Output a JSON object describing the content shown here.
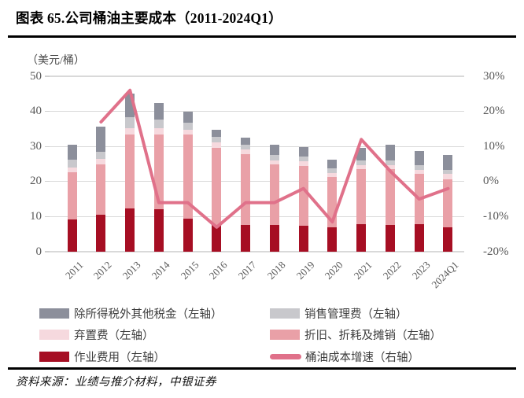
{
  "header": {
    "title": "图表 65.公司桶油主要成本（2011-2024Q1）"
  },
  "source": {
    "text": "资料来源：业绩与推介材料，中银证券"
  },
  "chart_data": {
    "type": "bar+line",
    "title": "公司桶油主要成本（2011-2024Q1）",
    "unit_label": "（美元/桶）",
    "categories": [
      "2011",
      "2012",
      "2013",
      "2014",
      "2015",
      "2016",
      "2017",
      "2018",
      "2019",
      "2020",
      "2021",
      "2022",
      "2023",
      "2024Q1"
    ],
    "series": [
      {
        "name": "作业费用（左轴）",
        "type": "bar",
        "axis": "left",
        "color": "#A60E23",
        "values": [
          9.1,
          10.5,
          12.3,
          12.2,
          9.5,
          7.7,
          7.7,
          7.6,
          7.4,
          6.9,
          7.8,
          7.7,
          7.8,
          6.9
        ]
      },
      {
        "name": "折旧、折耗及摊销（左轴）",
        "type": "bar",
        "axis": "left",
        "color": "#E9A0A7",
        "values": [
          13.5,
          14.4,
          21.2,
          21.3,
          23.9,
          22.0,
          20.1,
          17.2,
          17.1,
          14.4,
          15.8,
          15.8,
          14.3,
          13.7
        ]
      },
      {
        "name": "弃置费（左轴）",
        "type": "bar",
        "axis": "left",
        "color": "#F6D9DE",
        "values": [
          1.3,
          1.6,
          1.6,
          1.6,
          1.4,
          1.5,
          1.4,
          1.1,
          1.2,
          1.1,
          1.0,
          1.2,
          1.3,
          1.6
        ]
      },
      {
        "name": "销售管理费（左轴）",
        "type": "bar",
        "axis": "left",
        "color": "#C8C8CC",
        "values": [
          2.3,
          2.0,
          3.2,
          2.6,
          2.0,
          1.5,
          1.3,
          1.7,
          1.5,
          1.4,
          1.3,
          1.3,
          1.2,
          1.2
        ]
      },
      {
        "name": "除所得税外其他税金（左轴）",
        "type": "bar",
        "axis": "left",
        "color": "#8C8F9B",
        "values": [
          4.4,
          7.2,
          6.7,
          4.6,
          3.0,
          2.0,
          2.0,
          2.8,
          2.6,
          2.5,
          3.6,
          4.4,
          4.2,
          4.2
        ]
      },
      {
        "name": "桶油成本增速（右轴）",
        "type": "line",
        "axis": "right",
        "color": "#E0718A",
        "values": [
          null,
          17,
          26,
          -6,
          -6,
          -13,
          -6,
          -6,
          -2,
          -11.5,
          12,
          3,
          -5,
          -2
        ]
      }
    ],
    "bar_totals": [
      30.6,
      35.7,
      45.0,
      42.3,
      39.8,
      34.7,
      32.5,
      30.4,
      29.8,
      26.3,
      29.5,
      30.4,
      28.8,
      27.6
    ],
    "left_axis": {
      "min": 0,
      "max": 50,
      "ticks": [
        0,
        10,
        20,
        30,
        40,
        50
      ]
    },
    "right_axis": {
      "min": -20,
      "max": 30,
      "ticks": [
        {
          "label": "30%",
          "value": 30
        },
        {
          "label": "20%",
          "value": 20
        },
        {
          "label": "10%",
          "value": 10
        },
        {
          "label": "0%",
          "value": 0
        },
        {
          "label": "-10%",
          "value": -10
        },
        {
          "label": "-20%",
          "value": -20
        }
      ]
    },
    "grid": "horizontal",
    "legend_position": "bottom"
  },
  "legend": {
    "left_column": [
      {
        "label": "除所得税外其他税金（左轴）",
        "swatch": "rect",
        "color": "#8C8F9B"
      },
      {
        "label": "弃置费（左轴）",
        "swatch": "rect",
        "color": "#F6D9DE"
      },
      {
        "label": "作业费用（左轴）",
        "swatch": "rect",
        "color": "#A60E23"
      }
    ],
    "right_column": [
      {
        "label": "销售管理费（左轴）",
        "swatch": "rect",
        "color": "#C8C8CC"
      },
      {
        "label": "折旧、折耗及摊销（左轴）",
        "swatch": "rect",
        "color": "#E9A0A7"
      },
      {
        "label": "桶油成本增速（右轴）",
        "swatch": "line",
        "color": "#E0718A"
      }
    ]
  }
}
